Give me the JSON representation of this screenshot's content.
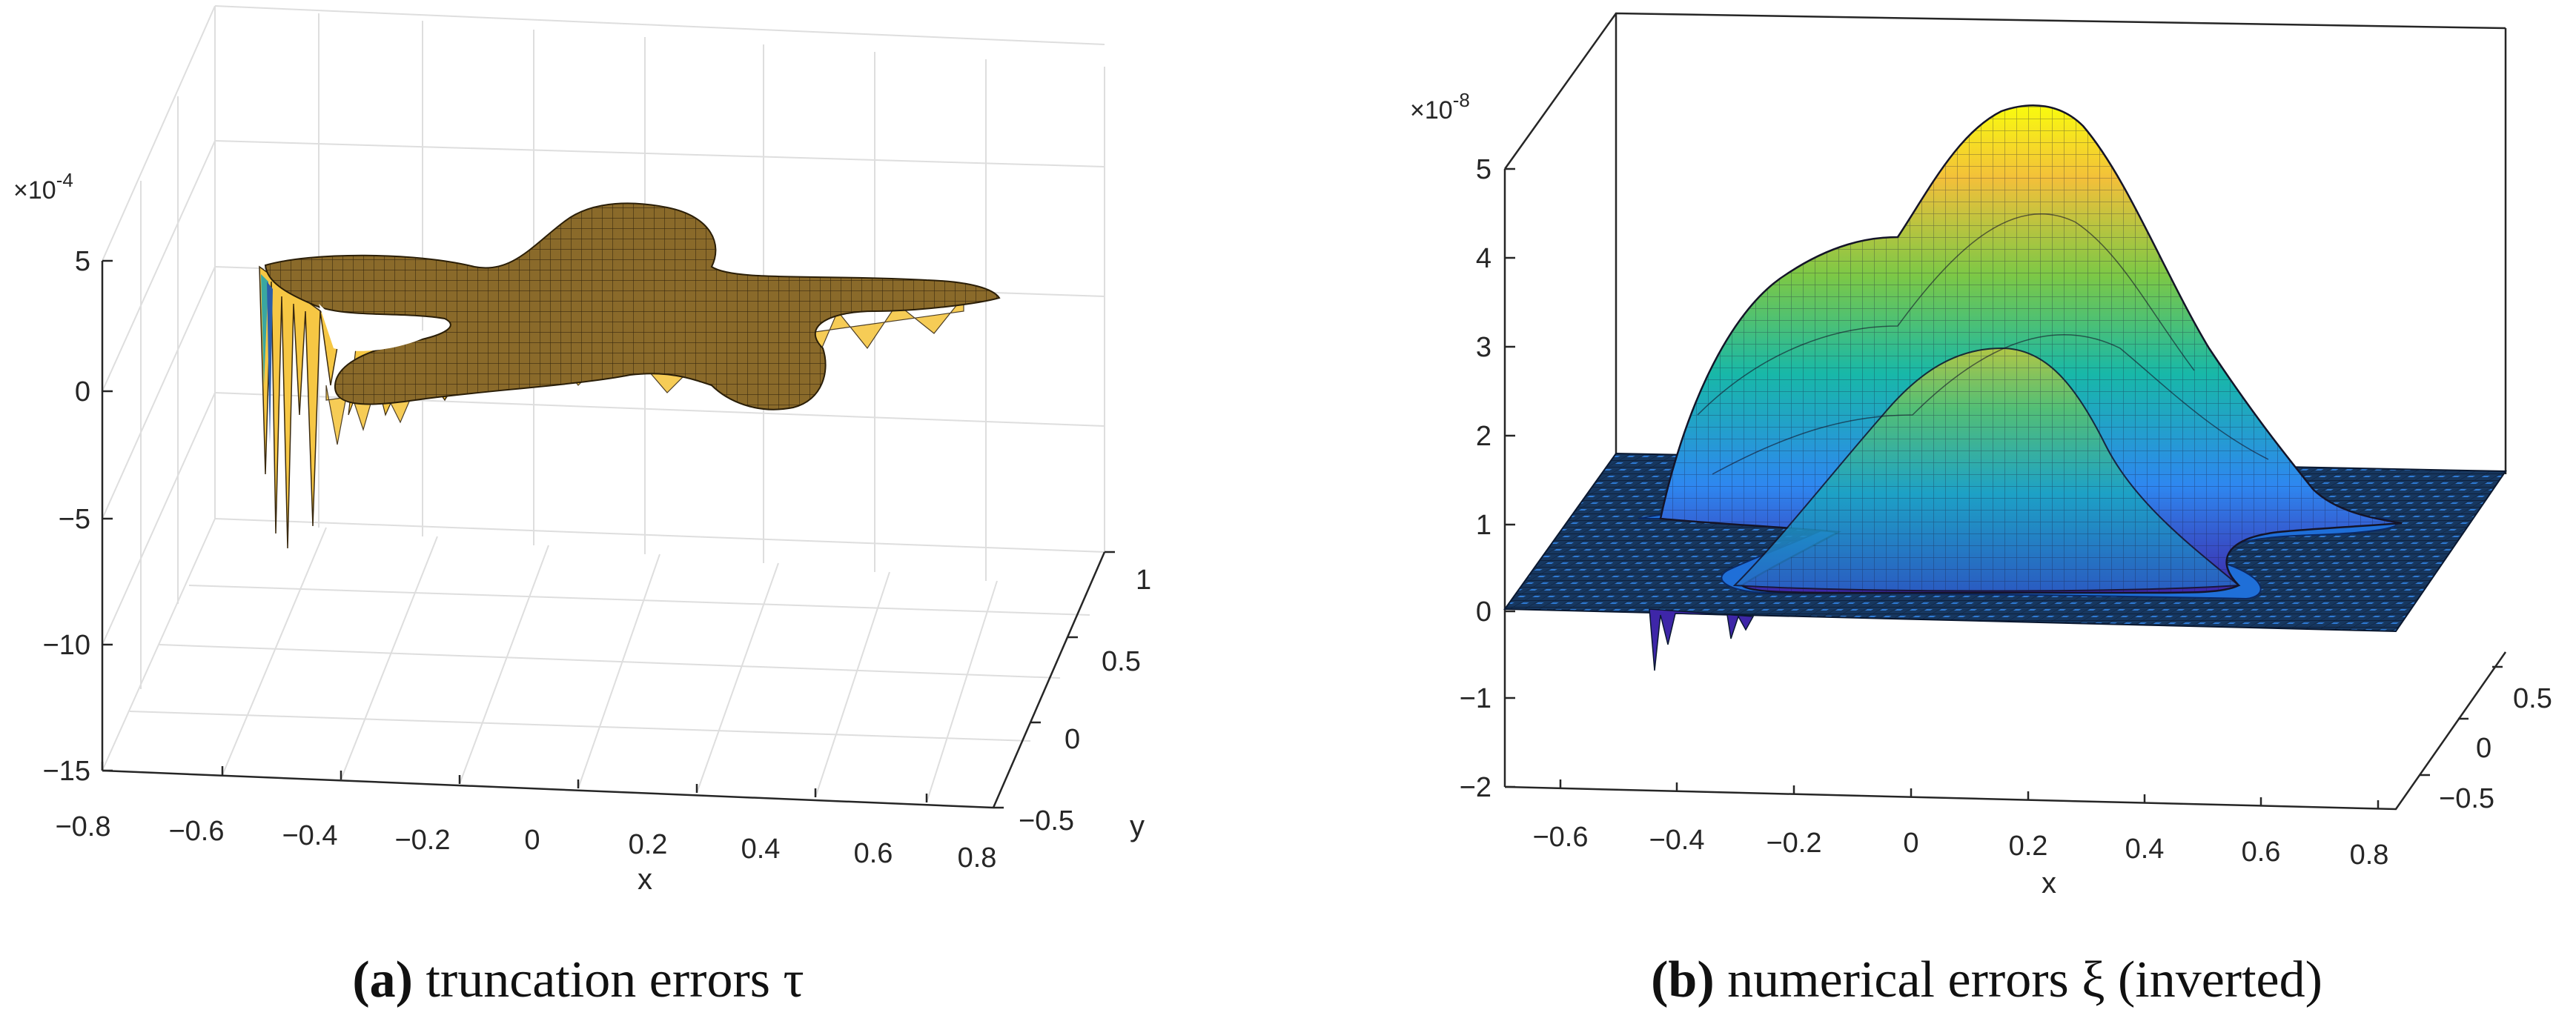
{
  "chart_data": [
    {
      "type": "surface",
      "panel": "(a)",
      "title": "",
      "caption_label": "a",
      "caption_text": "truncation errors τ",
      "xlabel": "x",
      "ylabel": "y",
      "zlabel": "",
      "z_multiplier": "×10",
      "z_exponent": "-4",
      "xlim": [
        -0.8,
        0.8
      ],
      "ylim": [
        -0.5,
        1
      ],
      "zlim": [
        -15,
        5
      ],
      "x_ticks": [
        "−0.8",
        "−0.6",
        "−0.4",
        "−0.2",
        "0",
        "0.2",
        "0.4",
        "0.6",
        "0.8"
      ],
      "y_ticks": [
        "−0.5",
        "0",
        "0.5",
        "1"
      ],
      "z_ticks": [
        "5",
        "0",
        "−5",
        "−10",
        "−15"
      ],
      "surface_color": "#8a6a2a",
      "surface_edge_color": "#3a2a10",
      "spike_colors": [
        "#f6c744",
        "#3aa7a0",
        "#2c5ea8"
      ],
      "grid": true,
      "data_summary": {
        "plateau_value": 2.5,
        "min_spike": -6.5,
        "max_spike": 4.0
      }
    },
    {
      "type": "surface",
      "panel": "(b)",
      "title": "",
      "caption_label": "b",
      "caption_text": "numerical errors ξ (inverted)",
      "xlabel": "x",
      "ylabel": "",
      "zlabel": "",
      "z_multiplier": "×10",
      "z_exponent": "-8",
      "xlim": [
        -0.75,
        0.8
      ],
      "ylim": [
        -0.6,
        0.6
      ],
      "zlim": [
        -2,
        5
      ],
      "x_ticks": [
        "−0.6",
        "−0.4",
        "−0.2",
        "0",
        "0.2",
        "0.4",
        "0.6",
        "0.8"
      ],
      "y_ticks": [
        "−0.5",
        "0",
        "0.5"
      ],
      "z_ticks": [
        "5",
        "4",
        "3",
        "2",
        "1",
        "0",
        "−1",
        "−2"
      ],
      "colormap": [
        "#3e26a8",
        "#2e87f0",
        "#18b8a8",
        "#7cc846",
        "#f3c03a",
        "#f9fb0e"
      ],
      "grid": false,
      "data_summary": {
        "peak_value": 4.7,
        "floor_value": 0.0,
        "min_spike": -0.8
      }
    }
  ]
}
